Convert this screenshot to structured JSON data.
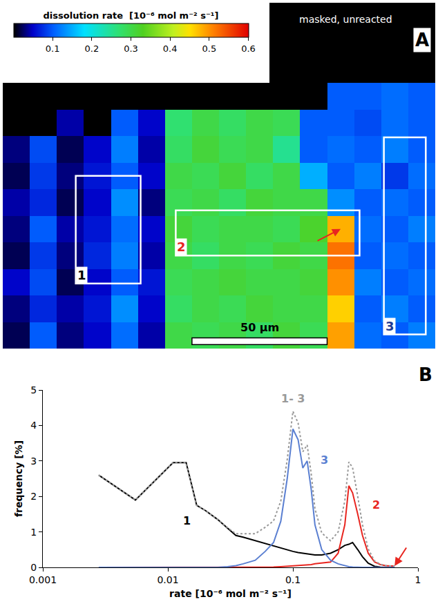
{
  "chart_data": [
    {
      "type": "heatmap",
      "panel": "A",
      "annotations": [
        "masked, unreacted"
      ],
      "x": [
        5,
        15,
        25,
        35,
        45,
        55,
        65,
        75,
        85,
        95,
        105,
        115,
        125,
        135,
        145,
        155
      ],
      "y": [
        5,
        15,
        25,
        35,
        45,
        55,
        65,
        75,
        85,
        95
      ],
      "xlim": [
        0,
        160
      ],
      "ylim": [
        100,
        0
      ],
      "tick_labels": false,
      "z": [
        [
          null,
          null,
          null,
          null,
          null,
          null,
          null,
          null,
          null,
          null,
          null,
          null,
          0.1,
          0.1,
          0.11,
          0.1
        ],
        [
          null,
          null,
          0.04,
          null,
          0.1,
          0.05,
          0.27,
          0.3,
          0.28,
          0.3,
          0.29,
          0.1,
          0.1,
          0.09,
          0.11,
          0.1
        ],
        [
          0.03,
          0.09,
          0.02,
          0.05,
          0.12,
          0.04,
          0.28,
          0.31,
          0.29,
          0.3,
          0.25,
          0.1,
          0.11,
          0.1,
          0.12,
          0.1
        ],
        [
          0.02,
          0.08,
          0.03,
          0.06,
          0.1,
          0.05,
          0.3,
          0.29,
          0.31,
          0.28,
          0.3,
          0.15,
          0.1,
          0.12,
          0.08,
          0.11
        ],
        [
          0.04,
          0.07,
          0.02,
          0.05,
          0.13,
          0.03,
          0.29,
          0.3,
          0.28,
          0.31,
          0.3,
          0.3,
          0.13,
          0.1,
          0.11,
          0.1
        ],
        [
          0.03,
          0.1,
          0.04,
          0.06,
          0.11,
          0.05,
          0.31,
          0.29,
          0.3,
          0.3,
          0.29,
          0.32,
          0.48,
          0.11,
          0.1,
          0.12
        ],
        [
          0.02,
          0.08,
          0.03,
          0.07,
          0.12,
          0.04,
          0.3,
          0.28,
          0.3,
          0.29,
          0.31,
          0.3,
          0.52,
          0.1,
          0.11,
          0.1
        ],
        [
          0.05,
          0.09,
          0.02,
          0.05,
          0.1,
          0.06,
          0.29,
          0.3,
          0.31,
          0.3,
          0.3,
          0.31,
          0.5,
          0.12,
          0.1,
          0.11
        ],
        [
          0.03,
          0.07,
          0.04,
          0.06,
          0.13,
          0.05,
          0.28,
          0.3,
          0.29,
          0.31,
          0.3,
          0.3,
          0.46,
          0.1,
          0.12,
          0.1
        ],
        [
          0.02,
          0.1,
          0.03,
          0.05,
          0.11,
          0.04,
          0.3,
          0.29,
          0.3,
          0.28,
          0.31,
          0.29,
          0.49,
          0.11,
          0.1,
          0.12
        ]
      ],
      "colorbar": {
        "title": "dissolution rate  [10⁻⁶ mol m⁻² s⁻¹]",
        "range": [
          0,
          0.6
        ],
        "ticks": [
          0.1,
          0.2,
          0.3,
          0.4,
          0.5,
          0.6
        ]
      },
      "regions": [
        {
          "label": "1",
          "color": "#000000",
          "x": [
            27,
            51
          ],
          "y": [
            35,
            75.5
          ]
        },
        {
          "label": "2",
          "color": "#e8251f",
          "x": [
            64,
            132
          ],
          "y": [
            48,
            65
          ]
        },
        {
          "label": "3",
          "color": "#1f3a93",
          "x": [
            141,
            156.5
          ],
          "y": [
            20.5,
            94.7
          ]
        }
      ],
      "scale_bar": {
        "label": "50 µm",
        "length": 50
      }
    },
    {
      "type": "line",
      "panel": "B",
      "x_label": "rate [10⁻⁶ mol m⁻² s⁻¹]",
      "y_label": "frequency [%]",
      "log": "x",
      "grid": false,
      "xlim": [
        0.001,
        1
      ],
      "xticks": [
        0.001,
        0.01,
        0.1,
        1
      ],
      "ylim": [
        0,
        5
      ],
      "yticks": [
        0,
        1,
        2,
        3,
        4,
        5
      ],
      "x": [
        0.0028,
        0.0055,
        0.011,
        0.014,
        0.017,
        0.02,
        0.025,
        0.03,
        0.035,
        0.04,
        0.05,
        0.06,
        0.07,
        0.08,
        0.09,
        0.1,
        0.11,
        0.12,
        0.13,
        0.14,
        0.15,
        0.17,
        0.2,
        0.23,
        0.26,
        0.28,
        0.3,
        0.33,
        0.36,
        0.4,
        0.45,
        0.5,
        0.55,
        0.6,
        0.65
      ],
      "series": [
        {
          "name": "1",
          "color": "#000000",
          "line_style": "solid",
          "values": [
            2.6,
            1.9,
            2.95,
            2.95,
            1.75,
            1.6,
            1.35,
            1.1,
            0.9,
            0.85,
            0.75,
            0.68,
            0.6,
            0.55,
            0.5,
            0.45,
            0.42,
            0.4,
            0.38,
            0.36,
            0.35,
            0.35,
            0.4,
            0.5,
            0.62,
            0.65,
            0.7,
            0.5,
            0.3,
            0.12,
            0.03,
            0.01,
            0,
            0,
            0
          ]
        },
        {
          "name": "2",
          "color": "#e8251f",
          "line_style": "solid",
          "values": [
            0,
            0,
            0,
            0,
            0,
            0,
            0,
            0,
            0,
            0,
            0,
            0,
            0.01,
            0.02,
            0.03,
            0.05,
            0.05,
            0.06,
            0.07,
            0.08,
            0.1,
            0.12,
            0.15,
            0.4,
            1.2,
            2.3,
            2.1,
            1.5,
            0.9,
            0.4,
            0.15,
            0.08,
            0.05,
            0.04,
            0.04
          ]
        },
        {
          "name": "3",
          "color": "#5a7fd1",
          "line_style": "solid",
          "values": [
            0,
            0,
            0,
            0,
            0,
            0,
            0,
            0.02,
            0.05,
            0.1,
            0.2,
            0.45,
            0.7,
            1.3,
            2.5,
            3.9,
            3.6,
            2.8,
            3.0,
            2.2,
            1.2,
            0.5,
            0.2,
            0.1,
            0.05,
            0.02,
            0.01,
            0,
            0,
            0,
            0,
            0,
            0,
            0,
            0
          ]
        },
        {
          "name": "1- 3",
          "color": "#999999",
          "line_style": "dot",
          "values": [
            2.6,
            1.9,
            2.95,
            2.95,
            1.75,
            1.6,
            1.35,
            1.12,
            0.95,
            0.95,
            0.95,
            1.13,
            1.31,
            1.87,
            3.03,
            4.4,
            4.07,
            3.26,
            3.45,
            2.64,
            1.65,
            0.97,
            0.75,
            1.0,
            1.87,
            2.97,
            2.81,
            2.0,
            1.2,
            0.52,
            0.18,
            0.09,
            0.05,
            0.04,
            0.04
          ]
        }
      ]
    }
  ]
}
